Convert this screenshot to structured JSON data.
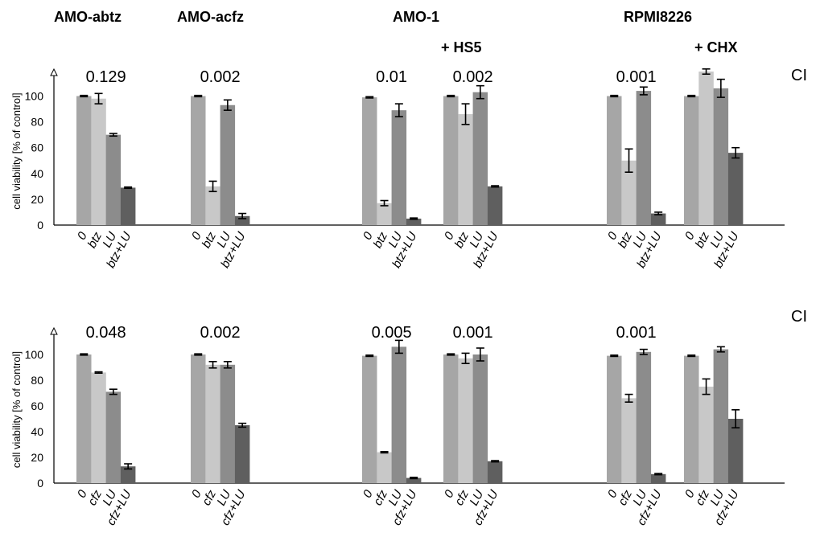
{
  "headers": {
    "abtz": "AMO-abtz",
    "acfz": "AMO-acfz",
    "amo1": "AMO-1",
    "rpmi": "RPMI8226",
    "hs5": "+ HS5",
    "chx": "+ CHX"
  },
  "ci_label": "CI",
  "colors": [
    "#a6a6a6",
    "#c8c8c8",
    "#8c8c8c",
    "#5f5f5f"
  ],
  "chart_data": [
    {
      "type": "bar",
      "ylabel": "cell viability [% of control]",
      "yticks": [
        "0",
        "20",
        "40",
        "60",
        "80",
        "100"
      ],
      "ylim": [
        0,
        120
      ],
      "categories": [
        "0",
        "btz",
        "LU",
        "btz+LU"
      ],
      "groups": [
        {
          "ci": "0.129",
          "values": [
            100,
            98,
            70,
            29
          ],
          "errors": [
            0.5,
            4,
            1,
            0.5
          ]
        },
        {
          "ci": "0.002",
          "values": [
            100,
            30,
            93,
            7
          ],
          "errors": [
            0.5,
            4,
            4,
            2
          ]
        },
        {
          "ci": "0.01",
          "values": [
            99,
            17,
            89,
            5
          ],
          "errors": [
            0.5,
            2,
            5,
            0.5
          ]
        },
        {
          "ci": "0.002",
          "values": [
            100,
            86,
            103,
            30
          ],
          "errors": [
            0.5,
            8,
            5,
            0.5
          ]
        },
        {
          "ci": "0.001",
          "values": [
            100,
            50,
            104,
            9
          ],
          "errors": [
            0.5,
            9,
            3,
            1
          ]
        },
        {
          "ci": "",
          "values": [
            100,
            119,
            106,
            56
          ],
          "errors": [
            0.5,
            2,
            7,
            4
          ]
        }
      ]
    },
    {
      "type": "bar",
      "ylabel": "cell viability [% of control]",
      "yticks": [
        "0",
        "20",
        "40",
        "60",
        "80",
        "100"
      ],
      "ylim": [
        0,
        120
      ],
      "categories": [
        "0",
        "cfz",
        "LU",
        "cfz+LU"
      ],
      "groups": [
        {
          "ci": "0.048",
          "values": [
            100,
            86,
            71,
            13
          ],
          "errors": [
            0.5,
            0.5,
            2,
            2
          ]
        },
        {
          "ci": "0.002",
          "values": [
            100,
            92,
            92,
            45
          ],
          "errors": [
            0.5,
            2.5,
            2.5,
            1.5
          ]
        },
        {
          "ci": "0.005",
          "values": [
            99,
            24,
            106,
            4
          ],
          "errors": [
            0.5,
            0.5,
            5,
            0.5
          ]
        },
        {
          "ci": "0.001",
          "values": [
            100,
            97,
            100,
            17
          ],
          "errors": [
            0.5,
            4,
            5,
            0.5
          ]
        },
        {
          "ci": "0.001",
          "values": [
            99,
            66,
            102,
            7
          ],
          "errors": [
            0.5,
            3,
            2,
            0.5
          ]
        },
        {
          "ci": "",
          "values": [
            99,
            75,
            104,
            50
          ],
          "errors": [
            0.5,
            6,
            2,
            7
          ]
        }
      ]
    }
  ]
}
